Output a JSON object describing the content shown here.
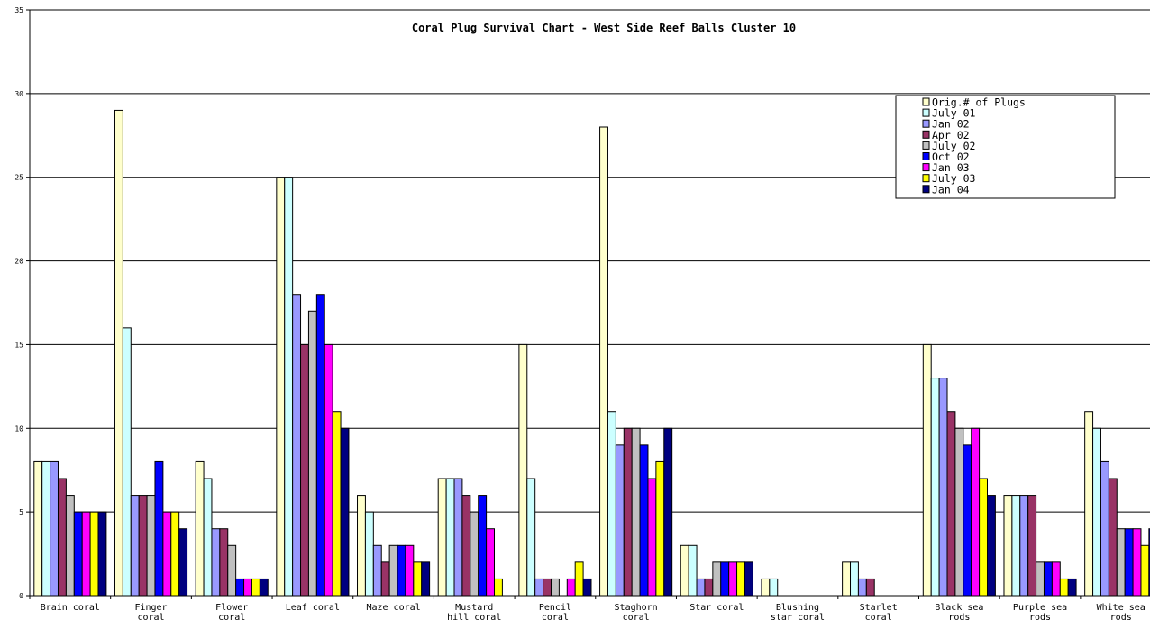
{
  "chart_data": {
    "type": "bar",
    "title": "Coral Plug Survival Chart - West Side Reef Balls Cluster 10",
    "xlabel": "",
    "ylabel": "",
    "ylim": [
      0,
      35
    ],
    "yticks": [
      0,
      5,
      10,
      15,
      20,
      25,
      30,
      35
    ],
    "grid": true,
    "legend_position": "top-right",
    "categories": [
      [
        "Brain coral"
      ],
      [
        "Finger",
        "coral"
      ],
      [
        "Flower",
        "coral"
      ],
      [
        "Leaf coral"
      ],
      [
        "Maze coral"
      ],
      [
        "Mustard",
        "hill coral"
      ],
      [
        "Pencil",
        "coral"
      ],
      [
        "Staghorn",
        "coral"
      ],
      [
        "Star coral"
      ],
      [
        "Blushing",
        "star coral"
      ],
      [
        "Starlet",
        "coral"
      ],
      [
        "Black sea",
        "rods"
      ],
      [
        "Purple sea",
        "rods"
      ],
      [
        "White sea",
        "rods"
      ]
    ],
    "series": [
      {
        "name": "Orig.# of Plugs",
        "color": "#FFFFCC",
        "values": [
          8,
          29,
          8,
          25,
          6,
          7,
          15,
          28,
          3,
          1,
          2,
          15,
          6,
          11
        ]
      },
      {
        "name": "July 01",
        "color": "#CCFFFF",
        "values": [
          8,
          16,
          7,
          25,
          5,
          7,
          7,
          11,
          3,
          1,
          2,
          13,
          6,
          10
        ]
      },
      {
        "name": "Jan 02",
        "color": "#9999FF",
        "values": [
          8,
          6,
          4,
          18,
          3,
          7,
          1,
          9,
          1,
          0,
          1,
          13,
          6,
          8
        ]
      },
      {
        "name": "Apr 02",
        "color": "#993366",
        "values": [
          7,
          6,
          4,
          15,
          2,
          6,
          1,
          10,
          1,
          0,
          1,
          11,
          6,
          7
        ]
      },
      {
        "name": "July 02",
        "color": "#C0C0C0",
        "values": [
          6,
          6,
          3,
          17,
          3,
          5,
          1,
          10,
          2,
          0,
          0,
          10,
          2,
          4
        ]
      },
      {
        "name": "Oct 02",
        "color": "#0000FF",
        "values": [
          5,
          8,
          1,
          18,
          3,
          6,
          0,
          9,
          2,
          0,
          0,
          9,
          2,
          4
        ]
      },
      {
        "name": "Jan 03",
        "color": "#FF00FF",
        "values": [
          5,
          5,
          1,
          15,
          3,
          4,
          1,
          7,
          2,
          0,
          0,
          10,
          2,
          4
        ]
      },
      {
        "name": "July 03",
        "color": "#FFFF00",
        "values": [
          5,
          5,
          1,
          11,
          2,
          1,
          2,
          8,
          2,
          0,
          0,
          7,
          1,
          3
        ]
      },
      {
        "name": "Jan 04",
        "color": "#000080",
        "values": [
          5,
          4,
          1,
          10,
          2,
          0,
          1,
          10,
          2,
          0,
          0,
          6,
          1,
          4
        ]
      }
    ]
  }
}
